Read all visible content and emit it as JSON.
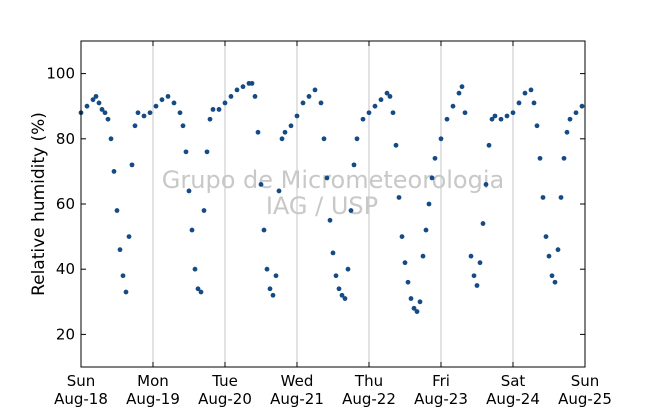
{
  "chart_data": {
    "type": "scatter",
    "title": "",
    "xlabel": "",
    "ylabel": "Relative humidity (%)",
    "ylim": [
      10,
      110
    ],
    "xlim": [
      "2024-08-18 00:00",
      "2024-08-25 00:00"
    ],
    "yticks": [
      20,
      40,
      60,
      80,
      100
    ],
    "xticks": [
      {
        "day": "Sun",
        "date": "Aug-18"
      },
      {
        "day": "Mon",
        "date": "Aug-19"
      },
      {
        "day": "Tue",
        "date": "Aug-20"
      },
      {
        "day": "Wed",
        "date": "Aug-21"
      },
      {
        "day": "Thu",
        "date": "Aug-22"
      },
      {
        "day": "Fri",
        "date": "Aug-23"
      },
      {
        "day": "Sat",
        "date": "Aug-24"
      },
      {
        "day": "Sun",
        "date": "Aug-25"
      }
    ],
    "grid": "vertical",
    "watermark": [
      "Grupo de Micrometeorologia",
      "IAG / USP"
    ],
    "marker_color": "#154a85",
    "series": [
      {
        "points": [
          [
            "2024-08-18 00:00",
            88
          ],
          [
            "2024-08-18 02:00",
            90
          ],
          [
            "2024-08-18 04:00",
            92
          ],
          [
            "2024-08-18 05:00",
            93
          ],
          [
            "2024-08-18 06:00",
            91
          ],
          [
            "2024-08-18 07:00",
            89
          ],
          [
            "2024-08-18 08:00",
            88
          ],
          [
            "2024-08-18 09:00",
            86
          ],
          [
            "2024-08-18 10:00",
            80
          ],
          [
            "2024-08-18 11:00",
            70
          ],
          [
            "2024-08-18 12:00",
            58
          ],
          [
            "2024-08-18 13:00",
            46
          ],
          [
            "2024-08-18 14:00",
            38
          ],
          [
            "2024-08-18 15:00",
            33
          ],
          [
            "2024-08-18 16:00",
            50
          ],
          [
            "2024-08-18 17:00",
            72
          ],
          [
            "2024-08-18 18:00",
            84
          ],
          [
            "2024-08-18 19:00",
            88
          ],
          [
            "2024-08-18 21:00",
            87
          ],
          [
            "2024-08-18 23:00",
            88
          ],
          [
            "2024-08-19 01:00",
            90
          ],
          [
            "2024-08-19 03:00",
            92
          ],
          [
            "2024-08-19 05:00",
            93
          ],
          [
            "2024-08-19 07:00",
            91
          ],
          [
            "2024-08-19 09:00",
            88
          ],
          [
            "2024-08-19 10:00",
            84
          ],
          [
            "2024-08-19 11:00",
            76
          ],
          [
            "2024-08-19 12:00",
            64
          ],
          [
            "2024-08-19 13:00",
            52
          ],
          [
            "2024-08-19 14:00",
            40
          ],
          [
            "2024-08-19 15:00",
            34
          ],
          [
            "2024-08-19 16:00",
            33
          ],
          [
            "2024-08-19 17:00",
            58
          ],
          [
            "2024-08-19 18:00",
            76
          ],
          [
            "2024-08-19 19:00",
            86
          ],
          [
            "2024-08-19 20:00",
            89
          ],
          [
            "2024-08-19 22:00",
            89
          ],
          [
            "2024-08-20 00:00",
            91
          ],
          [
            "2024-08-20 02:00",
            93
          ],
          [
            "2024-08-20 04:00",
            95
          ],
          [
            "2024-08-20 06:00",
            96
          ],
          [
            "2024-08-20 08:00",
            97
          ],
          [
            "2024-08-20 09:00",
            97
          ],
          [
            "2024-08-20 10:00",
            93
          ],
          [
            "2024-08-20 11:00",
            82
          ],
          [
            "2024-08-20 12:00",
            66
          ],
          [
            "2024-08-20 13:00",
            52
          ],
          [
            "2024-08-20 14:00",
            40
          ],
          [
            "2024-08-20 15:00",
            34
          ],
          [
            "2024-08-20 16:00",
            32
          ],
          [
            "2024-08-20 17:00",
            38
          ],
          [
            "2024-08-20 18:00",
            64
          ],
          [
            "2024-08-20 19:00",
            80
          ],
          [
            "2024-08-20 20:00",
            82
          ],
          [
            "2024-08-20 22:00",
            84
          ],
          [
            "2024-08-21 00:00",
            87
          ],
          [
            "2024-08-21 02:00",
            91
          ],
          [
            "2024-08-21 04:00",
            93
          ],
          [
            "2024-08-21 06:00",
            95
          ],
          [
            "2024-08-21 08:00",
            91
          ],
          [
            "2024-08-21 09:00",
            80
          ],
          [
            "2024-08-21 10:00",
            68
          ],
          [
            "2024-08-21 11:00",
            55
          ],
          [
            "2024-08-21 12:00",
            45
          ],
          [
            "2024-08-21 13:00",
            38
          ],
          [
            "2024-08-21 14:00",
            34
          ],
          [
            "2024-08-21 15:00",
            32
          ],
          [
            "2024-08-21 16:00",
            31
          ],
          [
            "2024-08-21 17:00",
            40
          ],
          [
            "2024-08-21 18:00",
            58
          ],
          [
            "2024-08-21 19:00",
            72
          ],
          [
            "2024-08-21 20:00",
            80
          ],
          [
            "2024-08-21 22:00",
            86
          ],
          [
            "2024-08-22 00:00",
            88
          ],
          [
            "2024-08-22 02:00",
            90
          ],
          [
            "2024-08-22 04:00",
            92
          ],
          [
            "2024-08-22 06:00",
            94
          ],
          [
            "2024-08-22 07:00",
            93
          ],
          [
            "2024-08-22 08:00",
            88
          ],
          [
            "2024-08-22 09:00",
            78
          ],
          [
            "2024-08-22 10:00",
            62
          ],
          [
            "2024-08-22 11:00",
            50
          ],
          [
            "2024-08-22 12:00",
            42
          ],
          [
            "2024-08-22 13:00",
            36
          ],
          [
            "2024-08-22 14:00",
            31
          ],
          [
            "2024-08-22 15:00",
            28
          ],
          [
            "2024-08-22 16:00",
            27
          ],
          [
            "2024-08-22 17:00",
            30
          ],
          [
            "2024-08-22 18:00",
            44
          ],
          [
            "2024-08-22 19:00",
            52
          ],
          [
            "2024-08-22 20:00",
            60
          ],
          [
            "2024-08-22 21:00",
            68
          ],
          [
            "2024-08-22 22:00",
            74
          ],
          [
            "2024-08-23 00:00",
            80
          ],
          [
            "2024-08-23 02:00",
            86
          ],
          [
            "2024-08-23 04:00",
            90
          ],
          [
            "2024-08-23 06:00",
            94
          ],
          [
            "2024-08-23 07:00",
            96
          ],
          [
            "2024-08-23 08:00",
            88
          ],
          [
            "2024-08-23 10:00",
            44
          ],
          [
            "2024-08-23 11:00",
            38
          ],
          [
            "2024-08-23 12:00",
            35
          ],
          [
            "2024-08-23 13:00",
            42
          ],
          [
            "2024-08-23 14:00",
            54
          ],
          [
            "2024-08-23 15:00",
            66
          ],
          [
            "2024-08-23 16:00",
            78
          ],
          [
            "2024-08-23 17:00",
            86
          ],
          [
            "2024-08-23 18:00",
            87
          ],
          [
            "2024-08-23 20:00",
            86
          ],
          [
            "2024-08-23 22:00",
            87
          ],
          [
            "2024-08-24 00:00",
            88
          ],
          [
            "2024-08-24 02:00",
            91
          ],
          [
            "2024-08-24 04:00",
            94
          ],
          [
            "2024-08-24 06:00",
            95
          ],
          [
            "2024-08-24 07:00",
            91
          ],
          [
            "2024-08-24 08:00",
            84
          ],
          [
            "2024-08-24 09:00",
            74
          ],
          [
            "2024-08-24 10:00",
            62
          ],
          [
            "2024-08-24 11:00",
            50
          ],
          [
            "2024-08-24 12:00",
            44
          ],
          [
            "2024-08-24 13:00",
            38
          ],
          [
            "2024-08-24 14:00",
            36
          ],
          [
            "2024-08-24 15:00",
            46
          ],
          [
            "2024-08-24 16:00",
            62
          ],
          [
            "2024-08-24 17:00",
            74
          ],
          [
            "2024-08-24 18:00",
            82
          ],
          [
            "2024-08-24 19:00",
            86
          ],
          [
            "2024-08-24 21:00",
            88
          ],
          [
            "2024-08-24 23:00",
            90
          ]
        ]
      }
    ]
  }
}
